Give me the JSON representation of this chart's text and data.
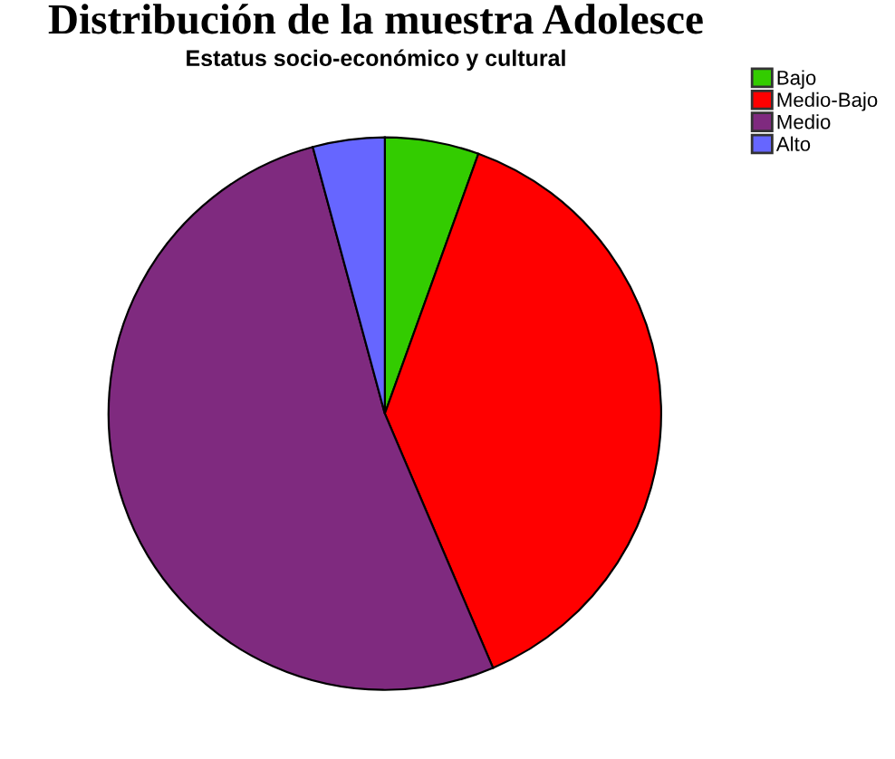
{
  "chart_data": {
    "type": "pie",
    "title": "Distribución de la muestra Adolesce",
    "subtitle": "Estatus socio-económico y cultural",
    "categories": [
      "Bajo",
      "Medio-Bajo",
      "Medio",
      "Alto"
    ],
    "values": [
      5.5,
      38.1,
      52.2,
      4.2
    ],
    "colors": [
      "#33cc00",
      "#ff0000",
      "#7f2a7f",
      "#6666ff"
    ],
    "legend": "top right"
  }
}
